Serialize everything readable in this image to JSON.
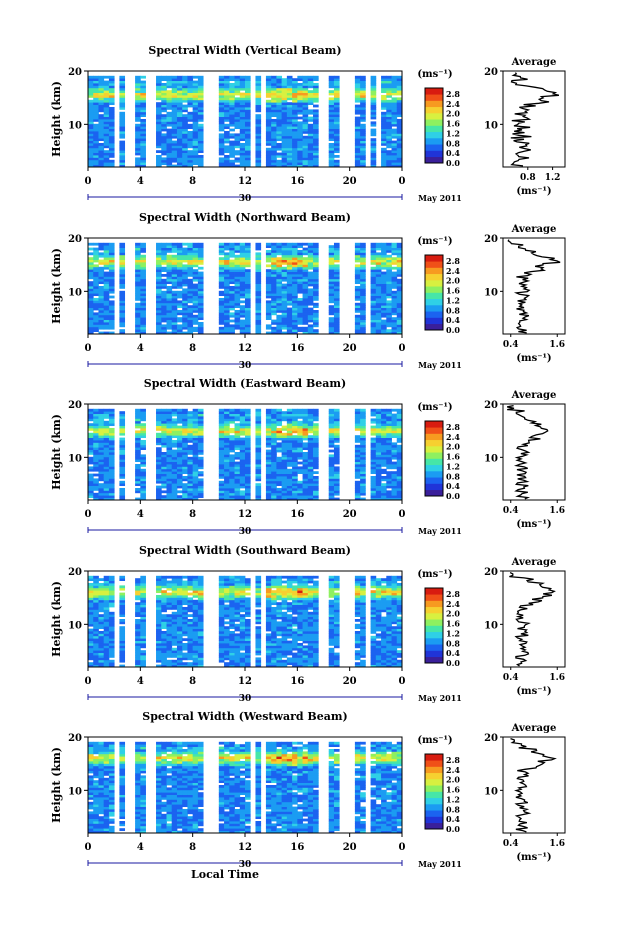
{
  "chart_data": [
    {
      "type": "heatmap",
      "title": "Spectral Width (Vertical Beam)",
      "ylabel": "Height (km)",
      "ylim": [
        2,
        20
      ],
      "yticks": [
        10,
        20
      ],
      "xlim": [
        0,
        24
      ],
      "xticks": [
        "0",
        "4",
        "8",
        "12",
        "16",
        "20",
        "0"
      ],
      "date_label": "30",
      "month_label": "May 2011",
      "colorbar": {
        "unit": "(ms⁻¹)",
        "ticks": [
          "2.8",
          "2.4",
          "2.0",
          "1.6",
          "1.2",
          "0.8",
          "0.4",
          "0.0"
        ]
      },
      "average": {
        "title": "Average",
        "xlabel": "(ms⁻¹)",
        "xticks": [
          "0.8",
          "1.2"
        ],
        "xlim": [
          0.4,
          1.4
        ],
        "yticks": [
          10,
          20
        ],
        "peak_height": 15.5,
        "peak_value": 1.3,
        "base_value": 0.7
      },
      "data_gaps_hours": [
        [
          1.8,
          2.2
        ],
        [
          2.7,
          3.1
        ],
        [
          3.4,
          3.7
        ],
        [
          4.6,
          5.0
        ],
        [
          8.8,
          10.1
        ],
        [
          12.6,
          12.8
        ],
        [
          13.2,
          13.5
        ],
        [
          17.8,
          18.4
        ],
        [
          19.3,
          20.2
        ],
        [
          21.2,
          21.6
        ],
        [
          21.9,
          22.3
        ]
      ]
    },
    {
      "type": "heatmap",
      "title": "Spectral Width (Northward Beam)",
      "ylabel": "Height (km)",
      "ylim": [
        2,
        20
      ],
      "yticks": [
        10,
        20
      ],
      "xlim": [
        0,
        24
      ],
      "xticks": [
        "0",
        "4",
        "8",
        "12",
        "16",
        "20",
        "0"
      ],
      "date_label": "30",
      "month_label": "May 2011",
      "colorbar": {
        "unit": "(ms⁻¹)",
        "ticks": [
          "2.8",
          "2.4",
          "2.0",
          "1.6",
          "1.2",
          "0.8",
          "0.4",
          "0.0"
        ]
      },
      "average": {
        "title": "Average",
        "xlabel": "(ms⁻¹)",
        "xticks": [
          "0.4",
          "1.6"
        ],
        "xlim": [
          0.2,
          1.8
        ],
        "yticks": [
          10,
          20
        ],
        "peak_height": 15.5,
        "peak_value": 1.5,
        "base_value": 0.7
      },
      "data_gaps_hours": [
        [
          1.8,
          2.2
        ],
        [
          2.7,
          3.1
        ],
        [
          3.4,
          3.7
        ],
        [
          4.6,
          5.0
        ],
        [
          8.8,
          10.1
        ],
        [
          12.6,
          12.8
        ],
        [
          13.2,
          13.5
        ],
        [
          17.8,
          18.4
        ],
        [
          19.3,
          20.2
        ],
        [
          21.2,
          21.6
        ]
      ]
    },
    {
      "type": "heatmap",
      "title": "Spectral Width (Eastward Beam)",
      "ylabel": "Height (km)",
      "ylim": [
        2,
        20
      ],
      "yticks": [
        10,
        20
      ],
      "xlim": [
        0,
        24
      ],
      "xticks": [
        "0",
        "4",
        "8",
        "12",
        "16",
        "20",
        "0"
      ],
      "date_label": "30",
      "month_label": "May 2011",
      "colorbar": {
        "unit": "(ms⁻¹)",
        "ticks": [
          "2.8",
          "2.4",
          "2.0",
          "1.6",
          "1.2",
          "0.8",
          "0.4",
          "0.0"
        ]
      },
      "average": {
        "title": "Average",
        "xlabel": "(ms⁻¹)",
        "xticks": [
          "0.4",
          "1.6"
        ],
        "xlim": [
          0.2,
          1.8
        ],
        "yticks": [
          10,
          20
        ],
        "peak_height": 15,
        "peak_value": 1.4,
        "base_value": 0.7
      },
      "data_gaps_hours": [
        [
          1.8,
          2.2
        ],
        [
          2.7,
          3.1
        ],
        [
          3.4,
          3.7
        ],
        [
          4.6,
          5.0
        ],
        [
          8.8,
          10.1
        ],
        [
          12.6,
          12.8
        ],
        [
          13.2,
          13.5
        ],
        [
          17.8,
          18.4
        ],
        [
          19.3,
          20.2
        ],
        [
          21.2,
          21.6
        ]
      ]
    },
    {
      "type": "heatmap",
      "title": "Spectral Width (Southward Beam)",
      "ylabel": "Height (km)",
      "ylim": [
        2,
        20
      ],
      "yticks": [
        10,
        20
      ],
      "xlim": [
        0,
        24
      ],
      "xticks": [
        "0",
        "4",
        "8",
        "12",
        "16",
        "20",
        "0"
      ],
      "date_label": "30",
      "month_label": "May 2011",
      "colorbar": {
        "unit": "(ms⁻¹)",
        "ticks": [
          "2.8",
          "2.4",
          "2.0",
          "1.6",
          "1.2",
          "0.8",
          "0.4",
          "0.0"
        ]
      },
      "average": {
        "title": "Average",
        "xlabel": "(ms⁻¹)",
        "xticks": [
          "0.4",
          "1.6"
        ],
        "xlim": [
          0.2,
          1.8
        ],
        "yticks": [
          10,
          20
        ],
        "peak_height": 16,
        "peak_value": 1.5,
        "base_value": 0.7
      },
      "data_gaps_hours": [
        [
          1.8,
          2.2
        ],
        [
          2.7,
          3.1
        ],
        [
          3.4,
          3.7
        ],
        [
          4.6,
          5.0
        ],
        [
          8.8,
          10.1
        ],
        [
          12.6,
          12.8
        ],
        [
          13.2,
          13.5
        ],
        [
          17.8,
          18.4
        ],
        [
          19.3,
          20.2
        ],
        [
          21.2,
          21.6
        ]
      ]
    },
    {
      "type": "heatmap",
      "title": "Spectral Width (Westward Beam)",
      "ylabel": "Height (km)",
      "ylim": [
        2,
        20
      ],
      "yticks": [
        10,
        20
      ],
      "xlim": [
        0,
        24
      ],
      "xticks": [
        "0",
        "4",
        "8",
        "12",
        "16",
        "20",
        "0"
      ],
      "date_label": "30",
      "month_label": "May 2011",
      "xlabel": "Local Time",
      "colorbar": {
        "unit": "(ms⁻¹)",
        "ticks": [
          "2.8",
          "2.4",
          "2.0",
          "1.6",
          "1.2",
          "0.8",
          "0.4",
          "0.0"
        ]
      },
      "average": {
        "title": "Average",
        "xlabel": "(ms⁻¹)",
        "xticks": [
          "0.4",
          "1.6"
        ],
        "xlim": [
          0.2,
          1.8
        ],
        "yticks": [
          10,
          20
        ],
        "peak_height": 16,
        "peak_value": 1.4,
        "base_value": 0.7
      },
      "data_gaps_hours": [
        [
          1.8,
          2.2
        ],
        [
          2.7,
          3.1
        ],
        [
          3.4,
          3.7
        ],
        [
          4.6,
          5.0
        ],
        [
          8.8,
          10.1
        ],
        [
          12.6,
          12.8
        ],
        [
          13.2,
          13.5
        ],
        [
          17.8,
          18.4
        ],
        [
          19.3,
          20.2
        ],
        [
          21.2,
          21.6
        ]
      ]
    }
  ],
  "colors": {
    "scale": [
      "#3a1f9a",
      "#2034d8",
      "#1b63f0",
      "#1b9cf2",
      "#2fd0e6",
      "#46e6a8",
      "#8ef060",
      "#d8f040",
      "#f6d030",
      "#f79a20",
      "#f05018",
      "#d81c10"
    ]
  }
}
